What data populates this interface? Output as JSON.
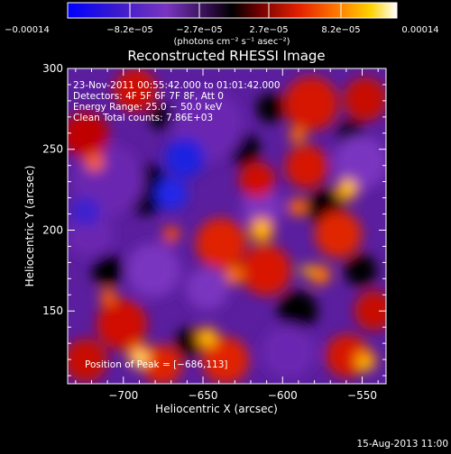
{
  "colors": {
    "background": "#000000",
    "foreground": "#ffffff",
    "palette": [
      "#0000ff",
      "#5a1e9e",
      "#7a35c0",
      "#000000",
      "#9a0000",
      "#e21f00",
      "#ff7a00",
      "#ffd200",
      "#ffffff"
    ]
  },
  "colorbar": {
    "tick_labels": [
      "−0.00014",
      "−8.2e−05",
      "−2.7e−05",
      "2.7e−05",
      "8.2e−05",
      "0.00014"
    ],
    "unit_label": "(photons cm⁻² s⁻¹ asec⁻²)"
  },
  "footer": {
    "date_stamp": "15-Aug-2013 11:00"
  },
  "chart_data": {
    "type": "heatmap",
    "title": "Reconstructed RHESSI Image",
    "xlabel": "Heliocentric X (arcsec)",
    "ylabel": "Heliocentric Y (arcsec)",
    "xlim": [
      -735,
      -535
    ],
    "ylim": [
      105,
      300
    ],
    "x_ticks": [
      -700,
      -650,
      -600,
      -550
    ],
    "x_tick_labels": [
      "−700",
      "−650",
      "−600",
      "−550"
    ],
    "y_ticks": [
      150,
      200,
      250,
      300
    ],
    "y_tick_labels": [
      "150",
      "200",
      "250",
      "300"
    ],
    "value_range": [
      -0.00014,
      0.00014
    ],
    "annotations": [
      "23-Nov-2011 00:55:42.000 to 01:01:42.000",
      "Detectors: 4F 5F 6F 7F 8F, Att 0",
      "Energy Range: 25.0 − 50.0 keV",
      "Clean     Total counts: 7.86E+03"
    ],
    "peak_annotation": "Position of Peak = [−686,113]",
    "peak": {
      "x": -686,
      "y": 113
    },
    "grid": false,
    "legend": "none"
  }
}
